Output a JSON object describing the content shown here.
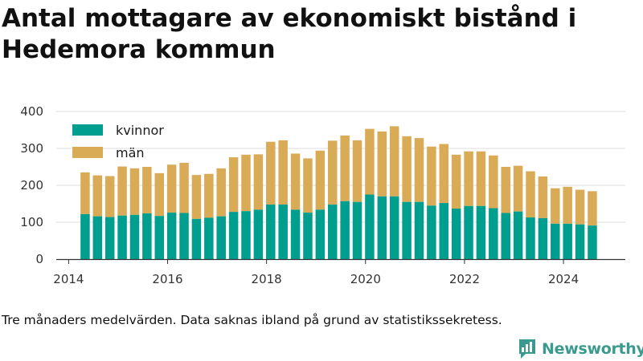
{
  "title": "Antal mottagare av ekonomiskt bistånd i Hedemora kommun",
  "note": "Tre månaders medelvärden. Data saknas ibland på grund av statistikssekretess.",
  "brand": "Newsworthy",
  "colors": {
    "kvinnor": "#009e8e",
    "man": "#d9ab57",
    "grid": "#dddddd",
    "axis": "#333333",
    "brand": "#3a9a8e"
  },
  "chart_data": {
    "type": "bar",
    "stacked": true,
    "x_ticks": [
      "2014",
      "2016",
      "2018",
      "2020",
      "2022",
      "2024"
    ],
    "xlim": [
      2013.75,
      2025.25
    ],
    "ylim": [
      0,
      400
    ],
    "y_ticks": [
      0,
      100,
      200,
      300,
      400
    ],
    "grid": true,
    "legend_position": "top-left",
    "x": [
      "2014-05",
      "2014-08",
      "2014-11",
      "2015-02",
      "2015-05",
      "2015-08",
      "2015-11",
      "2016-02",
      "2016-05",
      "2016-08",
      "2016-11",
      "2017-02",
      "2017-05",
      "2017-08",
      "2017-11",
      "2018-02",
      "2018-05",
      "2018-08",
      "2018-11",
      "2019-02",
      "2019-05",
      "2019-08",
      "2019-11",
      "2020-02",
      "2020-05",
      "2020-08",
      "2020-11",
      "2021-02",
      "2021-05",
      "2021-08",
      "2021-11",
      "2022-02",
      "2022-05",
      "2022-08",
      "2022-11",
      "2023-02",
      "2023-05",
      "2023-08",
      "2023-11",
      "2024-02",
      "2024-05",
      "2024-08"
    ],
    "series": [
      {
        "name": "kvinnor",
        "values": [
          122,
          116,
          114,
          118,
          120,
          124,
          117,
          126,
          125,
          109,
          112,
          116,
          128,
          130,
          134,
          148,
          148,
          134,
          126,
          134,
          148,
          157,
          155,
          175,
          170,
          170,
          155,
          155,
          145,
          152,
          137,
          144,
          144,
          138,
          125,
          129,
          113,
          111,
          96,
          96,
          94,
          91
        ]
      },
      {
        "name": "män",
        "values": [
          113,
          111,
          111,
          133,
          126,
          126,
          116,
          130,
          136,
          119,
          119,
          130,
          148,
          153,
          150,
          170,
          174,
          152,
          147,
          160,
          173,
          178,
          167,
          178,
          176,
          190,
          178,
          173,
          160,
          160,
          146,
          148,
          148,
          143,
          125,
          124,
          125,
          113,
          96,
          100,
          94,
          93
        ]
      }
    ]
  }
}
